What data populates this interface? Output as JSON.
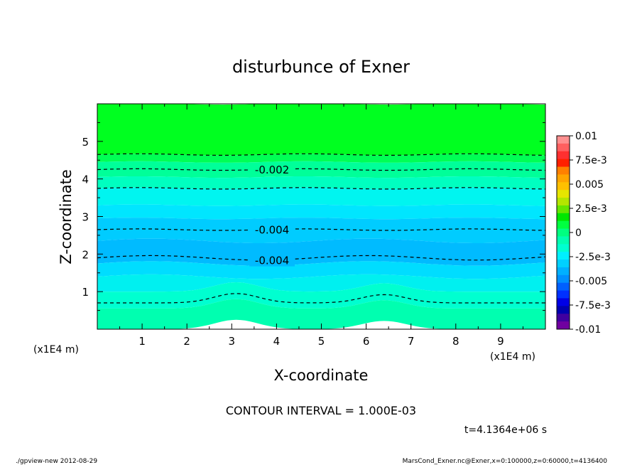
{
  "chart_data": {
    "type": "contour",
    "title": "disturbunce of Exner",
    "xlabel": "X-coordinate",
    "ylabel": "Z-coordinate",
    "x_unit": "(x1E4 m)",
    "y_unit": "(x1E4 m)",
    "x_ticks": [
      1,
      2,
      3,
      4,
      5,
      6,
      7,
      8,
      9
    ],
    "y_ticks": [
      1,
      2,
      3,
      4,
      5
    ],
    "xlim": [
      0,
      10
    ],
    "ylim": [
      0,
      6
    ],
    "colorbar": {
      "ticks": [
        "0.01",
        "7.5e-3",
        "0.005",
        "2.5e-3",
        "0",
        "-2.5e-3",
        "-0.005",
        "-7.5e-3",
        "-0.01"
      ],
      "levels": [
        0.01,
        0.0075,
        0.005,
        0.0025,
        0,
        -0.0025,
        -0.005,
        -0.0075,
        -0.01
      ],
      "colors": [
        "#ff9090",
        "#ff6060",
        "#ff3030",
        "#ff2000",
        "#ff8000",
        "#ffa500",
        "#ffc000",
        "#e6e600",
        "#b4e600",
        "#66e600",
        "#00e600",
        "#00ff40",
        "#00ff80",
        "#00ffb0",
        "#00ffd0",
        "#00f0ff",
        "#00d0ff",
        "#00b0ff",
        "#0090ff",
        "#0060ff",
        "#0030ff",
        "#0000e6",
        "#0000b0",
        "#4000a0",
        "#7000a0"
      ]
    },
    "bands": [
      {
        "z_top": 6.0,
        "z_bot": 4.65,
        "value": 0.0,
        "color": "#00ff20"
      },
      {
        "z_top": 4.65,
        "z_bot": 4.45,
        "value": -0.001,
        "color": "#00ff55"
      },
      {
        "z_top": 4.45,
        "z_bot": 4.05,
        "value": -0.0015,
        "color": "#00ff99"
      },
      {
        "z_top": 4.05,
        "z_bot": 3.75,
        "value": -0.002,
        "color": "#00ffc0"
      },
      {
        "z_top": 3.75,
        "z_bot": 3.3,
        "value": -0.0025,
        "color": "#00f5f0"
      },
      {
        "z_top": 3.3,
        "z_bot": 2.95,
        "value": -0.003,
        "color": "#00e6ff"
      },
      {
        "z_top": 2.95,
        "z_bot": 2.35,
        "value": -0.0035,
        "color": "#00ccff"
      },
      {
        "z_top": 2.35,
        "z_bot": 1.75,
        "value": -0.004,
        "color": "#00bbff"
      },
      {
        "z_top": 1.75,
        "z_bot": 1.4,
        "value": -0.0035,
        "color": "#00ddff"
      },
      {
        "z_top": 1.4,
        "z_bot": 1.0,
        "value": -0.003,
        "color": "#00f0f0"
      },
      {
        "z_top": 1.0,
        "z_bot": 0.55,
        "value": -0.0025,
        "color": "#00ffd0"
      },
      {
        "z_top": 0.55,
        "z_bot": 0.0,
        "value": -0.002,
        "color": "#00ffb0"
      }
    ],
    "contours": [
      {
        "z": 4.65,
        "label": ""
      },
      {
        "z": 4.25,
        "label": "-0.002"
      },
      {
        "z": 3.75,
        "label": ""
      },
      {
        "z": 2.65,
        "label": "-0.004"
      },
      {
        "z": 1.9,
        "label": "-0.004"
      },
      {
        "z": 0.7,
        "label": ""
      }
    ]
  },
  "contour_interval": "CONTOUR INTERVAL = 1.000E-03",
  "time_label": "t=4.1364e+06 s",
  "footer_left": "./gpview-new   2012-08-29",
  "footer_right": "MarsCond_Exner.nc@Exner,x=0:100000,z=0:60000,t=4136400"
}
